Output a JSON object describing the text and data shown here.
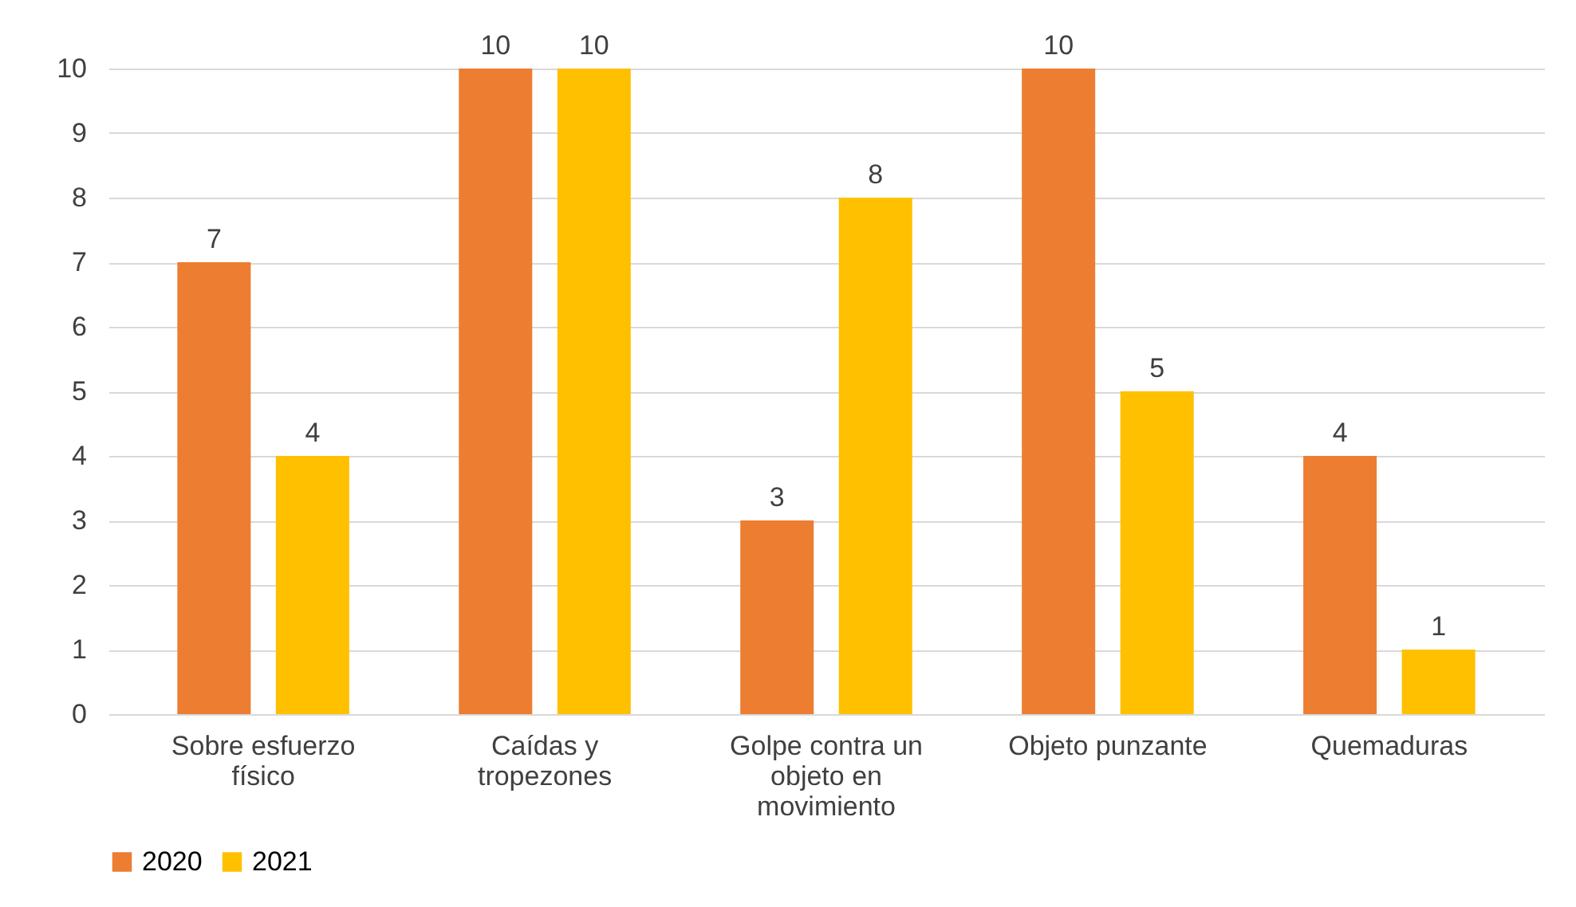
{
  "chart_data": {
    "type": "bar",
    "categories": [
      "Sobre esfuerzo físico",
      "Caídas y tropezones",
      "Golpe contra un objeto en movimiento",
      "Objeto punzante",
      "Quemaduras"
    ],
    "series": [
      {
        "name": "2020",
        "color": "#ed7d31",
        "values": [
          7,
          10,
          3,
          10,
          4
        ]
      },
      {
        "name": "2021",
        "color": "#ffc000",
        "values": [
          4,
          10,
          8,
          5,
          1
        ]
      }
    ],
    "ylim": [
      0,
      10
    ],
    "yticks": [
      0,
      1,
      2,
      3,
      4,
      5,
      6,
      7,
      8,
      9,
      10
    ],
    "grid": "y",
    "legend": "bottom",
    "data_labels": true
  }
}
